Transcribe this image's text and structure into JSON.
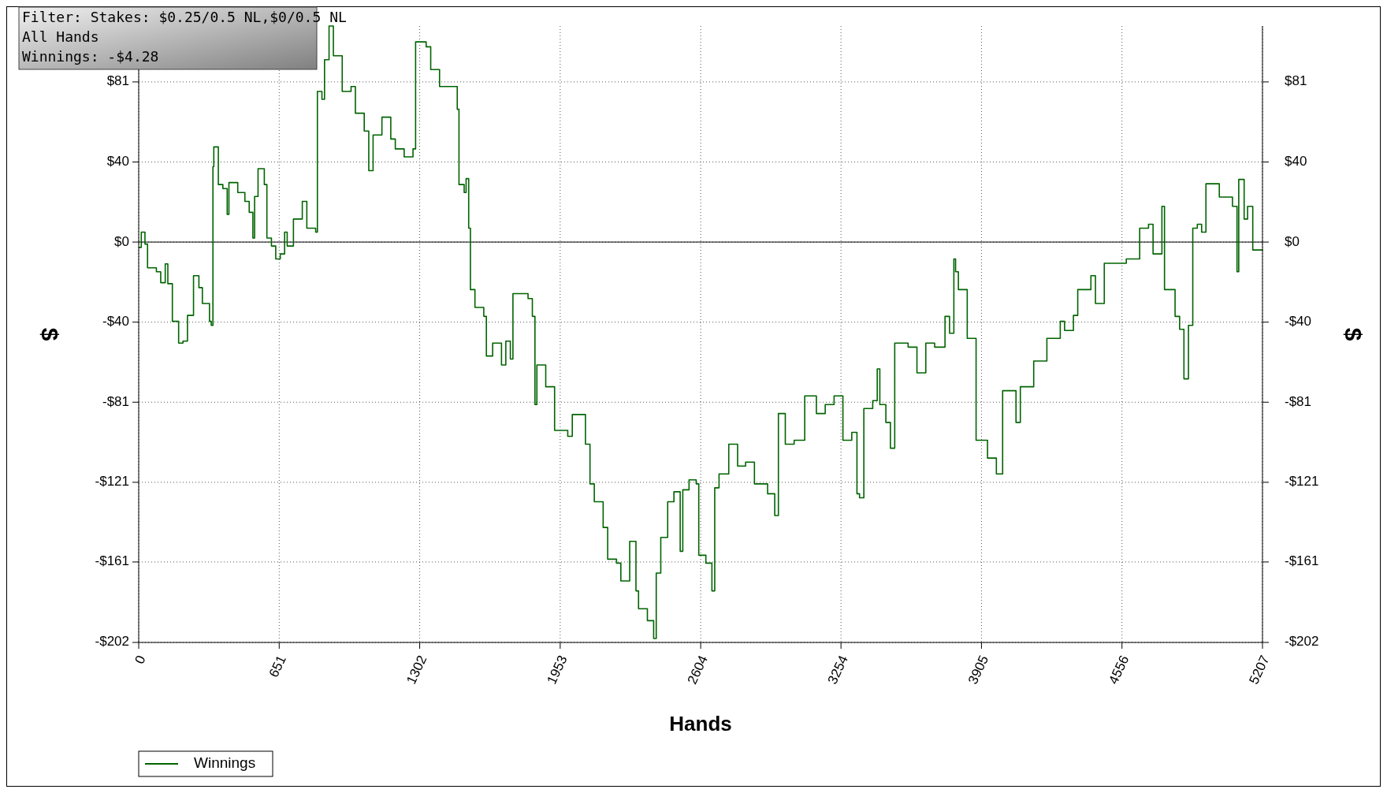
{
  "chart_data": {
    "type": "step",
    "xlabel": "Hands",
    "ylabel": "$",
    "y2label": "$",
    "annotations": [
      "Filter: Stakes: $0.25/0.5 NL,$0/0.5 NL",
      "All Hands",
      "Winnings: -$4.28"
    ],
    "x": [
      0,
      12,
      29,
      41,
      82,
      102,
      123,
      135,
      156,
      185,
      205,
      226,
      254,
      279,
      295,
      328,
      336,
      344,
      348,
      369,
      390,
      410,
      418,
      459,
      492,
      512,
      529,
      537,
      553,
      582,
      594,
      615,
      635,
      656,
      676,
      688,
      717,
      758,
      779,
      820,
      828,
      849,
      861,
      882,
      902,
      943,
      984,
      1004,
      1045,
      1066,
      1086,
      1127,
      1168,
      1189,
      1230,
      1271,
      1283,
      1332,
      1353,
      1394,
      1455,
      1476,
      1484,
      1508,
      1517,
      1529,
      1537,
      1558,
      1599,
      1611,
      1640,
      1681,
      1701,
      1722,
      1734,
      1804,
      1824,
      1836,
      1845,
      1886,
      1927,
      1988,
      2009,
      2070,
      2091,
      2111,
      2152,
      2173,
      2214,
      2234,
      2275,
      2304,
      2316,
      2357,
      2386,
      2398,
      2419,
      2451,
      2480,
      2509,
      2521,
      2550,
      2583,
      2595,
      2628,
      2656,
      2669,
      2689,
      2734,
      2775,
      2812,
      2853,
      2914,
      2947,
      2964,
      2996,
      3037,
      3086,
      3140,
      3181,
      3222,
      3263,
      3304,
      3328,
      3340,
      3360,
      3401,
      3422,
      3434,
      3462,
      3483,
      3503,
      3565,
      3606,
      3647,
      3688,
      3736,
      3757,
      3777,
      3785,
      3798,
      3839,
      3880,
      3933,
      3974,
      4003,
      4065,
      4085,
      4147,
      4208,
      4270,
      4290,
      4331,
      4351,
      4412,
      4433,
      4474,
      4576,
      4638,
      4679,
      4700,
      4741,
      4753,
      4802,
      4823,
      4843,
      4864,
      4884,
      4905,
      4925,
      4945,
      5007,
      5068,
      5089,
      5097,
      5122,
      5138,
      5162,
      5207
    ],
    "series": [
      {
        "name": "Winnings",
        "color": "#006400",
        "values": [
          -2.7,
          5,
          -1,
          -13,
          -15,
          -20.5,
          -11,
          -21,
          -40,
          -51,
          -50,
          -37,
          -17,
          -23,
          -31,
          -40,
          -42,
          38,
          48,
          29,
          27,
          14,
          30,
          25,
          20.5,
          15,
          2,
          23,
          37,
          29,
          2,
          -2,
          -8.5,
          -6,
          5,
          -2,
          11.6,
          20.5,
          7,
          5,
          76,
          72,
          92,
          109,
          94,
          76,
          78.5,
          65,
          56,
          36,
          54,
          63,
          52,
          47,
          43,
          47,
          101,
          98.5,
          87,
          78.5,
          78.5,
          67,
          29,
          25,
          32,
          7,
          -24,
          -33,
          -37.5,
          -57.5,
          -51,
          -62,
          -50,
          -59,
          -26,
          -28.5,
          -37.5,
          -82,
          -62,
          -73,
          -95,
          -98,
          -87,
          -102,
          -122,
          -131,
          -144,
          -160,
          -162,
          -171,
          -151,
          -176,
          -185,
          -191,
          -200,
          -167,
          -149,
          -131,
          -126,
          -156,
          -125,
          -120,
          -122,
          -158,
          -162,
          -176,
          -124,
          -117,
          -102,
          -113,
          -111,
          -122,
          -127,
          -138,
          -86.5,
          -102,
          -100,
          -77.6,
          -86.5,
          -82,
          -77.6,
          -100,
          -96,
          -127,
          -129,
          -84,
          -80,
          -64,
          -82,
          -91,
          -104,
          -51,
          -53,
          -66,
          -51,
          -53,
          -37.5,
          -46,
          -8.5,
          -15,
          -24,
          -48.6,
          -100,
          -109,
          -117,
          -75,
          -91,
          -73,
          -60,
          -48.6,
          -40,
          -44.6,
          -37,
          -24,
          -17,
          -31,
          -10.7,
          -8.5,
          7,
          9,
          -6,
          18,
          -24,
          -37.5,
          -44,
          -69,
          -42,
          7,
          9,
          5,
          29.4,
          22.7,
          18,
          -15,
          31.6,
          11.6,
          18,
          -4,
          -4.3
        ]
      }
    ],
    "xlim": [
      0,
      5207
    ],
    "xticks": [
      0,
      651,
      1302,
      1953,
      2604,
      3254,
      3905,
      4556,
      5207
    ],
    "ylim": [
      -202,
      109
    ],
    "yticks": [
      {
        "value": -202,
        "label": "-$202"
      },
      {
        "value": -161.4,
        "label": "-$161"
      },
      {
        "value": -121.2,
        "label": "-$121"
      },
      {
        "value": -80.8,
        "label": "-$81"
      },
      {
        "value": -40.4,
        "label": "-$40"
      },
      {
        "value": 0,
        "label": "$0"
      },
      {
        "value": 40.4,
        "label": "$40"
      },
      {
        "value": 80.8,
        "label": "$81"
      }
    ],
    "y2lim": [
      -202,
      109
    ],
    "y2ticks": [
      {
        "value": -202,
        "label": "-$202"
      },
      {
        "value": -161.4,
        "label": "-$161"
      },
      {
        "value": -121.2,
        "label": "-$121"
      },
      {
        "value": -80.8,
        "label": "-$81"
      },
      {
        "value": -40.4,
        "label": "-$40"
      },
      {
        "value": 0,
        "label": "$0"
      },
      {
        "value": 40.4,
        "label": "$40"
      },
      {
        "value": 80.8,
        "label": "$81"
      }
    ],
    "ref_lines": [
      {
        "axis": "y",
        "value": 0,
        "color": "#000000"
      }
    ],
    "grid": true,
    "legend": "bottom left",
    "line_style": "solid",
    "marker": "none"
  }
}
